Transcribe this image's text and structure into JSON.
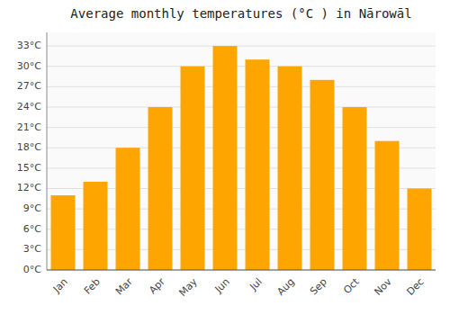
{
  "chart_data": {
    "type": "bar",
    "title": "Average monthly temperatures (°C ) in Nārowāl",
    "categories": [
      "Jan",
      "Feb",
      "Mar",
      "Apr",
      "May",
      "Jun",
      "Jul",
      "Aug",
      "Sep",
      "Oct",
      "Nov",
      "Dec"
    ],
    "values": [
      11,
      13,
      18,
      24,
      30,
      33,
      31,
      30,
      28,
      24,
      19,
      12
    ],
    "color": "#FFA500",
    "ylim": [
      0,
      35
    ],
    "yticks": [
      {
        "value": 0,
        "label": "0°C"
      },
      {
        "value": 3,
        "label": "3°C"
      },
      {
        "value": 6,
        "label": "6°C"
      },
      {
        "value": 9,
        "label": "9°C"
      },
      {
        "value": 12,
        "label": "12°C"
      },
      {
        "value": 15,
        "label": "15°C"
      },
      {
        "value": 18,
        "label": "18°C"
      },
      {
        "value": 21,
        "label": "21°C"
      },
      {
        "value": 24,
        "label": "24°C"
      },
      {
        "value": 27,
        "label": "27°C"
      },
      {
        "value": 30,
        "label": "30°C"
      },
      {
        "value": 33,
        "label": "33°C"
      }
    ],
    "grid": true
  }
}
